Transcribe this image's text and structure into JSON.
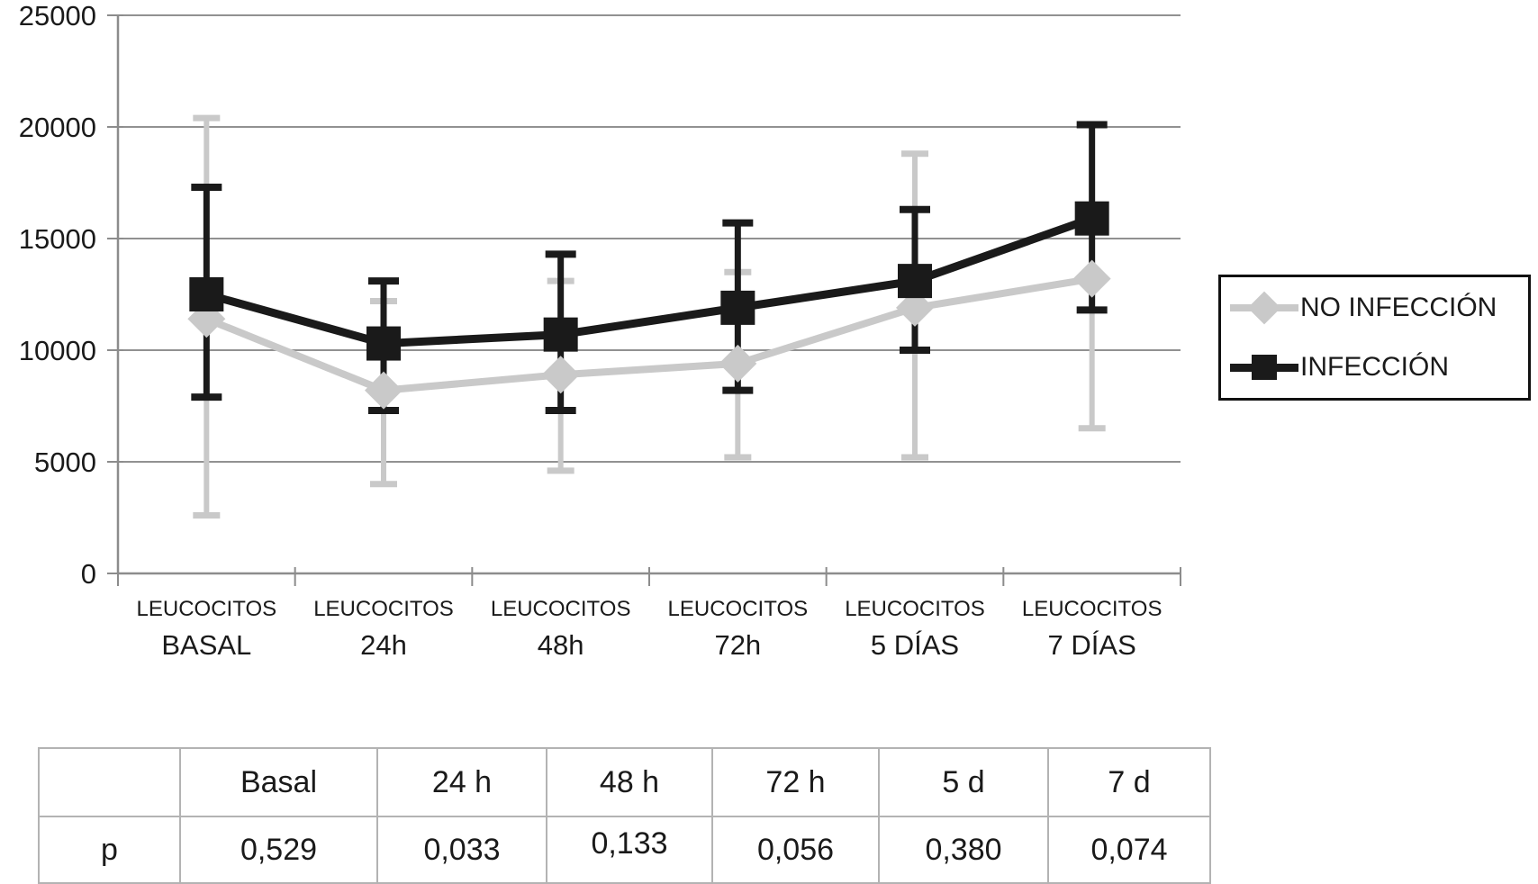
{
  "chart_data": {
    "type": "line",
    "title": "",
    "categories_line1": [
      "LEUCOCITOS",
      "LEUCOCITOS",
      "LEUCOCITOS",
      "LEUCOCITOS",
      "LEUCOCITOS",
      "LEUCOCITOS"
    ],
    "categories_line2": [
      "BASAL",
      "24h",
      "48h",
      "72h",
      "5 DÍAS",
      "7 DÍAS"
    ],
    "xlabel": "",
    "ylabel": "",
    "ylim": [
      0,
      25000
    ],
    "ytick_step": 5000,
    "ytick_labels": [
      "0",
      "5000",
      "10000",
      "15000",
      "20000",
      "25000"
    ],
    "grid": true,
    "legend_position": "right",
    "series": [
      {
        "name": "NO INFECCIÓN",
        "marker": "diamond",
        "color": "#c9c9c9",
        "values": [
          11400,
          8200,
          8900,
          9400,
          11900,
          13200
        ],
        "err_low": [
          2600,
          4000,
          4600,
          5200,
          5200,
          6500
        ],
        "err_high": [
          20400,
          12200,
          13100,
          13500,
          18800,
          null
        ]
      },
      {
        "name": "INFECCIÓN",
        "marker": "square",
        "color": "#1a1a1a",
        "values": [
          12500,
          10300,
          10700,
          11900,
          13100,
          15900
        ],
        "err_low": [
          7900,
          7300,
          7300,
          8200,
          10000,
          11800
        ],
        "err_high": [
          17300,
          13100,
          14300,
          15700,
          16300,
          20100
        ]
      }
    ]
  },
  "legend": {
    "items": [
      {
        "label": "NO INFECCIÓN"
      },
      {
        "label": "INFECCIÓN"
      }
    ]
  },
  "table": {
    "header": [
      "",
      "Basal",
      "24 h",
      "48 h",
      "72 h",
      "5 d",
      "7 d"
    ],
    "rows": [
      [
        "p",
        "0,529",
        "0,033",
        "0,133",
        "0,056",
        "0,380",
        "0,074"
      ]
    ]
  },
  "colors": {
    "grid": "#919191",
    "axis": "#8c8c8c",
    "table_border": "#b3b3b3",
    "text": "#1a1a1a",
    "series_no_infeccion": "#c9c9c9",
    "series_infeccion": "#1a1a1a"
  }
}
